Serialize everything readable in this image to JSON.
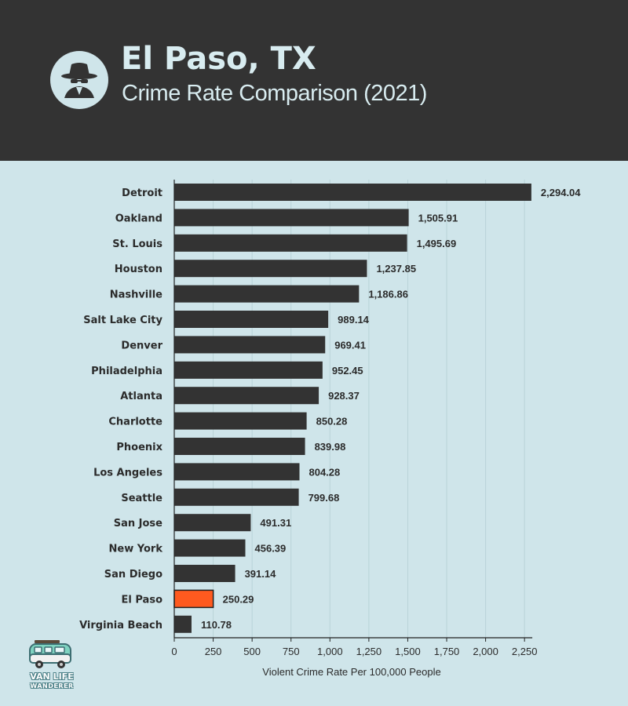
{
  "header": {
    "title": "El Paso, TX",
    "subtitle": "Crime Rate Comparison (2021)",
    "icon": "spy-icon"
  },
  "logo": {
    "line1": "VAN LIFE",
    "line2": "WANDERER"
  },
  "colors": {
    "header_bg": "#333333",
    "chart_bg": "#cfe5ea",
    "bar": "#333333",
    "highlight": "#ff5a1f"
  },
  "chart_data": {
    "type": "bar",
    "orientation": "horizontal",
    "categories": [
      "Detroit",
      "Oakland",
      "St. Louis",
      "Houston",
      "Nashville",
      "Salt Lake City",
      "Denver",
      "Philadelphia",
      "Atlanta",
      "Charlotte",
      "Phoenix",
      "Los Angeles",
      "Seattle",
      "San Jose",
      "New York",
      "San Diego",
      "El Paso",
      "Virginia Beach"
    ],
    "values": [
      2294.04,
      1505.91,
      1495.69,
      1237.85,
      1186.86,
      989.14,
      969.41,
      952.45,
      928.37,
      850.28,
      839.98,
      804.28,
      799.68,
      491.31,
      456.39,
      391.14,
      250.29,
      110.78
    ],
    "value_labels": [
      "2,294.04",
      "1,505.91",
      "1,495.69",
      "1,237.85",
      "1,186.86",
      "989.14",
      "969.41",
      "952.45",
      "928.37",
      "850.28",
      "839.98",
      "804.28",
      "799.68",
      "491.31",
      "456.39",
      "391.14",
      "250.29",
      "110.78"
    ],
    "highlight": "El Paso",
    "xlabel": "Violent Crime Rate Per 100,000 People",
    "xlim": [
      0,
      2300
    ],
    "xticks": [
      0,
      250,
      500,
      750,
      1000,
      1250,
      1500,
      1750,
      2000,
      2250
    ],
    "xtick_labels": [
      "0",
      "250",
      "500",
      "750",
      "1,000",
      "1,250",
      "1,500",
      "1,750",
      "2,000",
      "2,250"
    ],
    "grid": true
  }
}
